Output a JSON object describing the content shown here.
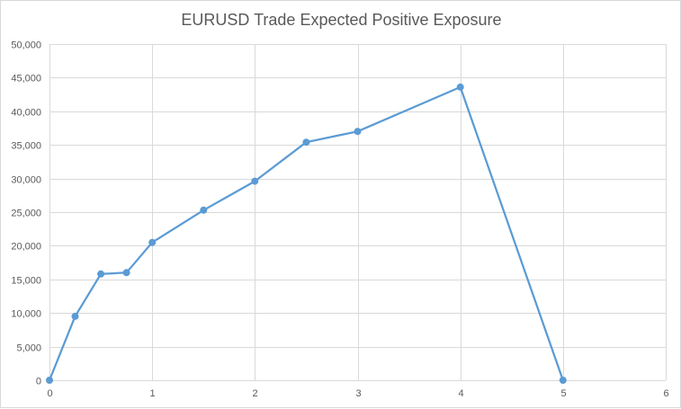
{
  "chart_data": {
    "type": "scatter",
    "title": "EURUSD Trade Expected Positive Exposure",
    "xlabel": "",
    "ylabel": "",
    "xlim": [
      0,
      6
    ],
    "ylim": [
      0,
      50000
    ],
    "x_ticks": [
      0,
      1,
      2,
      3,
      4,
      5,
      6
    ],
    "x_tick_labels": [
      "0",
      "1",
      "2",
      "3",
      "4",
      "5",
      "6"
    ],
    "y_ticks": [
      0,
      5000,
      10000,
      15000,
      20000,
      25000,
      30000,
      35000,
      40000,
      45000,
      50000
    ],
    "y_tick_labels": [
      "0",
      "5,000",
      "10,000",
      "15,000",
      "20,000",
      "25,000",
      "30,000",
      "35,000",
      "40,000",
      "45,000",
      "50,000"
    ],
    "grid": true,
    "legend": "none",
    "series": [
      {
        "color": "#5b9bd5",
        "x": [
          0,
          0.25,
          0.5,
          0.75,
          1,
          1.5,
          2,
          2.5,
          3,
          4,
          5
        ],
        "y": [
          0,
          9500,
          15800,
          16000,
          20500,
          25300,
          29600,
          35400,
          37000,
          43600,
          0
        ]
      }
    ]
  },
  "colors": {
    "grid": "#d9d9d9",
    "axis_text": "#595959",
    "series": "#5b9bd5"
  }
}
